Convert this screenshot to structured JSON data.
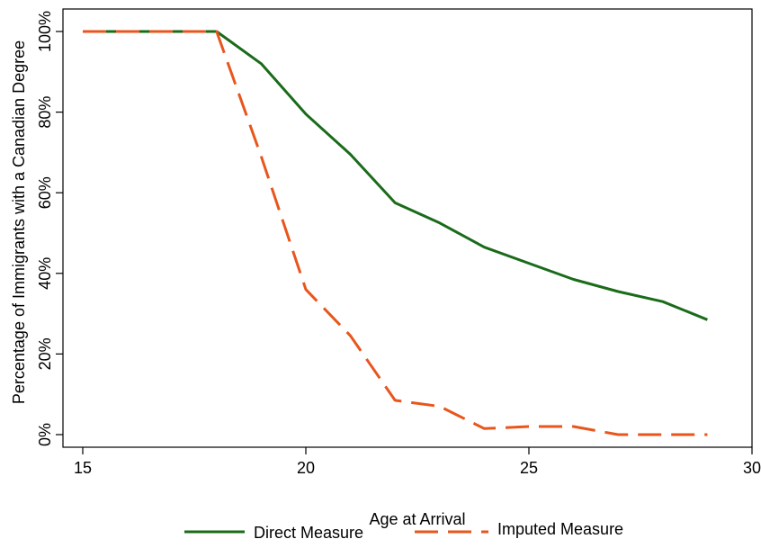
{
  "chart_data": {
    "type": "line",
    "title": "",
    "xlabel": "Age at Arrival",
    "ylabel": "Percentage of Immigrants with a Canadian Degree",
    "xlim": [
      15,
      30
    ],
    "ylim": [
      0,
      100
    ],
    "x_ticks": [
      15,
      20,
      25,
      30
    ],
    "x_tick_labels": [
      "15",
      "20",
      "25",
      "30"
    ],
    "y_ticks": [
      0,
      20,
      40,
      60,
      80,
      100
    ],
    "y_tick_labels": [
      "0%",
      "20%",
      "40%",
      "60%",
      "80%",
      "100%"
    ],
    "grid": false,
    "legend_position": "bottom",
    "x": [
      15,
      16,
      17,
      18,
      19,
      20,
      21,
      22,
      23,
      24,
      25,
      26,
      27,
      28,
      29
    ],
    "series": [
      {
        "name": "Direct Measure",
        "color": "#1a6b1a",
        "dash": "solid",
        "values": [
          100,
          100,
          100,
          100,
          92,
          79.5,
          69.5,
          57.5,
          52.5,
          46.5,
          42.5,
          38.5,
          35.5,
          33,
          28.5
        ]
      },
      {
        "name": "Imputed Measure",
        "color": "#e8561c",
        "dash": "dashed",
        "values": [
          100,
          100,
          100,
          100,
          69,
          36,
          24.5,
          8.5,
          7,
          1.5,
          2,
          2,
          0,
          0,
          0
        ]
      }
    ]
  }
}
